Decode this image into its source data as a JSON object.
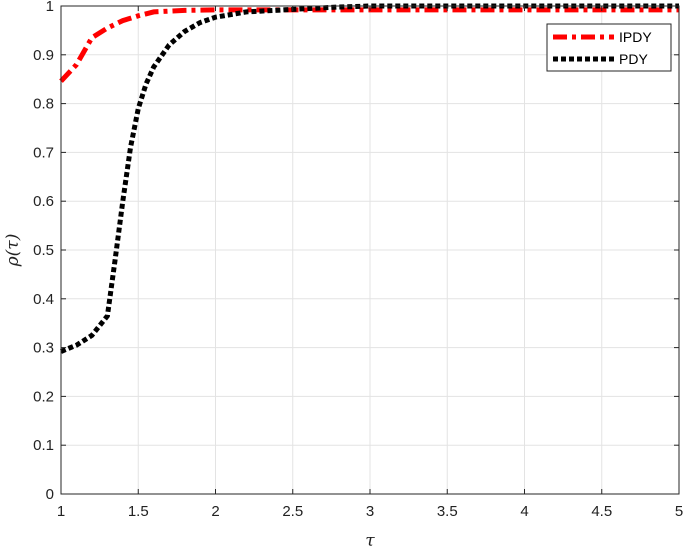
{
  "chart_data": {
    "type": "line",
    "xlabel": "τ",
    "ylabel": "ρ(τ)",
    "xlim": [
      1,
      5
    ],
    "ylim": [
      0,
      1
    ],
    "xticks": [
      1,
      1.5,
      2,
      2.5,
      3,
      3.5,
      4,
      4.5,
      5
    ],
    "xtick_labels": [
      "1",
      "1.5",
      "2",
      "2.5",
      "3",
      "3.5",
      "4",
      "4.5",
      "5"
    ],
    "yticks": [
      0,
      0.1,
      0.2,
      0.3,
      0.4,
      0.5,
      0.6,
      0.7,
      0.8,
      0.9,
      1
    ],
    "ytick_labels": [
      "0",
      "0.1",
      "0.2",
      "0.3",
      "0.4",
      "0.5",
      "0.6",
      "0.7",
      "0.8",
      "0.9",
      "1"
    ],
    "grid": true,
    "legend_position": "top-right",
    "series": [
      {
        "name": "IPDY",
        "color": "#ff0000",
        "style": "dash-dot",
        "x": [
          1.0,
          1.1,
          1.2,
          1.3,
          1.4,
          1.5,
          1.6,
          1.8,
          2.0,
          2.5,
          3.0,
          4.0,
          5.0
        ],
        "y": [
          0.846,
          0.88,
          0.935,
          0.955,
          0.97,
          0.98,
          0.988,
          0.991,
          0.992,
          0.992,
          0.992,
          0.992,
          0.992
        ]
      },
      {
        "name": "PDY",
        "color": "#000000",
        "style": "dotted",
        "x": [
          1.0,
          1.1,
          1.2,
          1.3,
          1.35,
          1.4,
          1.45,
          1.5,
          1.55,
          1.6,
          1.7,
          1.8,
          1.9,
          2.0,
          2.2,
          2.5,
          2.8,
          3.0,
          4.0,
          5.0
        ],
        "y": [
          0.292,
          0.305,
          0.325,
          0.365,
          0.48,
          0.6,
          0.71,
          0.79,
          0.84,
          0.875,
          0.92,
          0.948,
          0.966,
          0.977,
          0.988,
          0.993,
          0.998,
          1.0,
          1.0,
          1.0
        ]
      }
    ]
  }
}
